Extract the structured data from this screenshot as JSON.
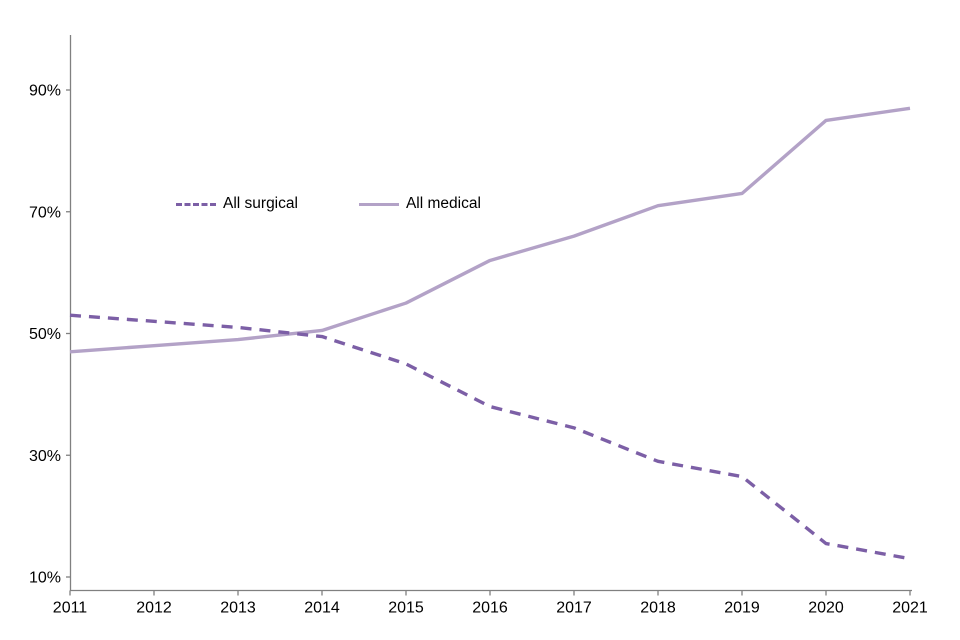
{
  "chart_data": {
    "type": "line",
    "x": [
      2011,
      2012,
      2013,
      2014,
      2015,
      2016,
      2017,
      2018,
      2019,
      2020,
      2021
    ],
    "series": [
      {
        "name": "All surgical",
        "style": "dashed",
        "color": "#7C5FA6",
        "values": [
          53,
          52,
          51,
          49.5,
          45,
          38,
          34.5,
          29,
          26.5,
          15.5,
          13
        ]
      },
      {
        "name": "All medical",
        "style": "solid",
        "color": "#B3A2C7",
        "values": [
          47,
          48,
          49,
          50.5,
          55,
          62,
          66,
          71,
          73,
          85,
          87
        ]
      }
    ],
    "title": "",
    "xlabel": "",
    "ylabel": "",
    "ylim": [
      10,
      90
    ],
    "yticks": [
      10,
      30,
      50,
      70,
      90
    ],
    "ytick_suffix": "%",
    "grid": false,
    "legend_position": "inside-upper-left",
    "axis_color": "#808080",
    "tick_label_color": "#000000"
  }
}
